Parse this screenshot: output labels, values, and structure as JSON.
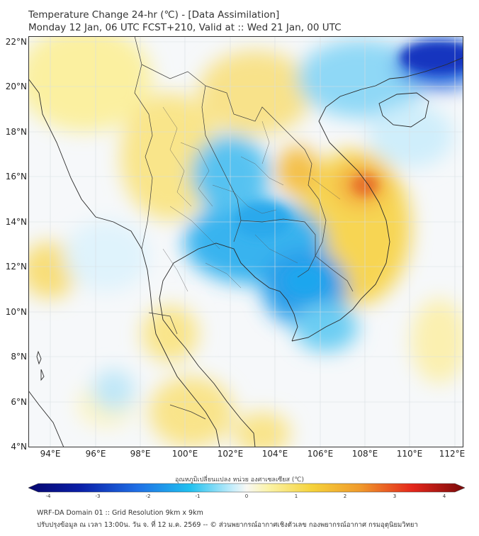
{
  "title": {
    "line1": "Temperature Change 24-hr (℃) - [Data Assimilation]",
    "line2": "Monday 12 Jan, 06 UTC FCST+210, Valid at :: Wed 21 Jan, 00 UTC"
  },
  "axes": {
    "lat_labels": [
      "22°N",
      "20°N",
      "18°N",
      "16°N",
      "14°N",
      "12°N",
      "10°N",
      "8°N",
      "6°N",
      "4°N"
    ],
    "lon_labels": [
      "94°E",
      "96°E",
      "98°E",
      "100°E",
      "102°E",
      "104°E",
      "106°E",
      "108°E",
      "110°E",
      "112°E"
    ],
    "lat_range": [
      4,
      22.3
    ],
    "lon_range": [
      93,
      112.4
    ]
  },
  "colorbar": {
    "title": "อุณหภูมิเปลี่ยนแปลง หน่วย องศาเซลเซียส (℃)",
    "tick_labels": [
      "-4",
      "-3",
      "-2",
      "-1",
      "0",
      "1",
      "2",
      "3",
      "4"
    ],
    "range": [
      -4,
      4
    ]
  },
  "footer": {
    "line1": "WRF-DA Domain 01 :: Grid Resolution 9km x 9km",
    "line2": "ปรับปรุงข้อมูล ณ เวลา 13:00น. วัน จ. ที่ 12 ม.ค. 2569 -- © ส่วนพยากรณ์อากาศเชิงตัวเลข กองพยากรณ์อากาศ กรมอุตุนิยมวิทยา"
  },
  "colors": {
    "cold_strong": "#0a1fa8",
    "cold": "#1ea6ee",
    "cool": "#8fd8f6",
    "neutral": "#f6f8fa",
    "warm_light": "#fbf1a0",
    "warm": "#f5d23a",
    "hot": "#ef7b25"
  }
}
